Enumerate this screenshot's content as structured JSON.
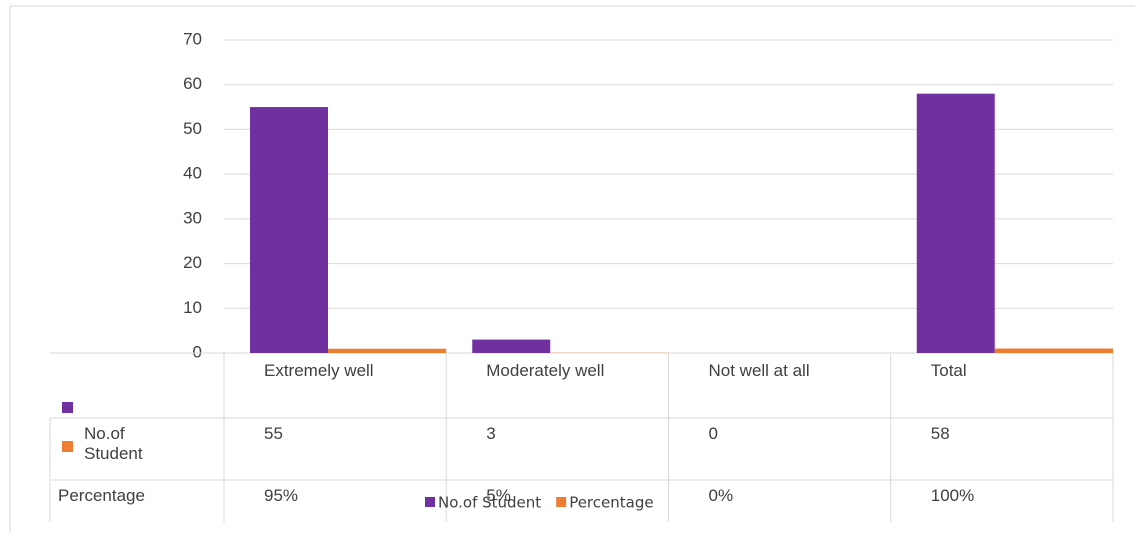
{
  "chart_data": {
    "type": "bar",
    "categories": [
      "Extremely well",
      "Moderately well",
      "Not well at all",
      "Total"
    ],
    "series": [
      {
        "name": "No.of Student",
        "color": "#7030a0",
        "values": [
          55,
          3,
          0,
          58
        ]
      },
      {
        "name": "Percentage",
        "color": "#ed7d31",
        "values": [
          0.95,
          0.05,
          0,
          1
        ],
        "value_labels": [
          "95%",
          "5%",
          "0%",
          "100%"
        ]
      }
    ],
    "ylim": [
      0,
      70
    ],
    "yticks": [
      0,
      10,
      20,
      30,
      40,
      50,
      60,
      70
    ],
    "grid": true,
    "legend": "bottom"
  }
}
